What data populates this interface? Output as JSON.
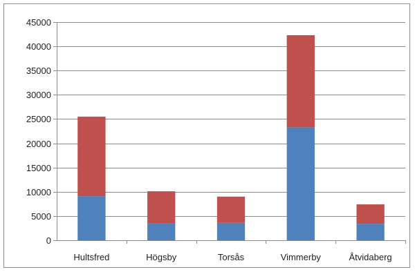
{
  "chart_data": {
    "type": "bar",
    "stacked": true,
    "categories": [
      "Hultsfred",
      "Högsby",
      "Torsås",
      "Vimmerby",
      "Åtvidaberg"
    ],
    "series": [
      {
        "values": [
          9100,
          3500,
          3600,
          23300,
          3400
        ],
        "color": "#4f81bd"
      },
      {
        "values": [
          16400,
          6600,
          5400,
          19000,
          4000
        ],
        "color": "#c0504d"
      }
    ],
    "ylim": [
      0,
      45000
    ],
    "yticks": [
      0,
      5000,
      10000,
      15000,
      20000,
      25000,
      30000,
      35000,
      40000,
      45000
    ],
    "grid": true,
    "legend": "none"
  }
}
